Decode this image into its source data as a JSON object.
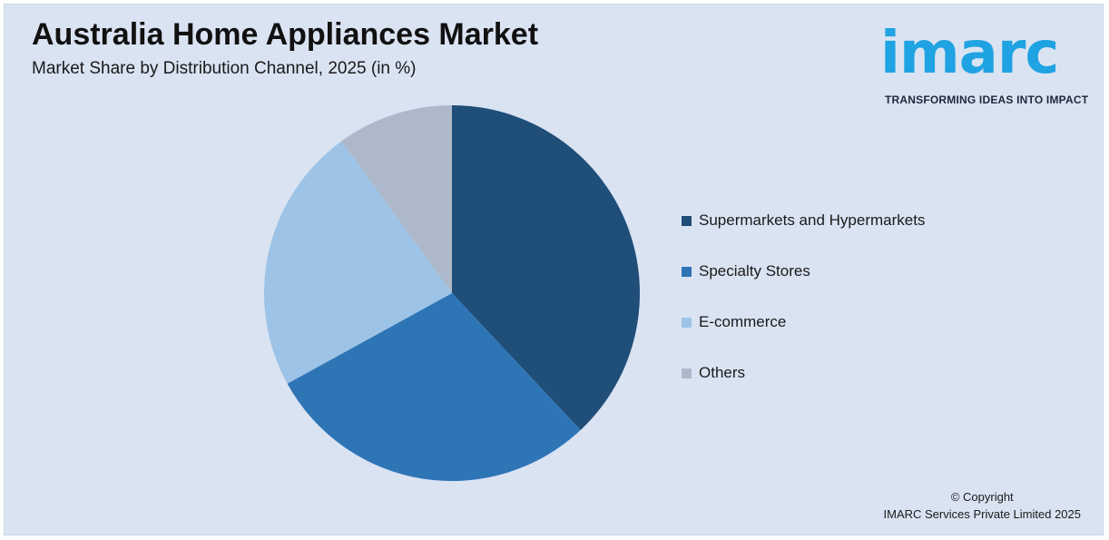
{
  "title": "Australia Home Appliances Market",
  "subtitle": "Market Share by Distribution Channel, 2025 (in %)",
  "logo": {
    "word": "imarc",
    "tagline": "TRANSFORMING IDEAS INTO IMPACT",
    "color": "#1fa3e2"
  },
  "copyright": {
    "line1": "© Copyright",
    "line2": "IMARC Services Private Limited 2025"
  },
  "chart_data": {
    "type": "pie",
    "title": "Australia Home Appliances Market",
    "subtitle": "Market Share by Distribution Channel, 2025 (in %)",
    "categories": [
      "Supermarkets and Hypermarkets",
      "Specialty Stores",
      "E-commerce",
      "Others"
    ],
    "values": [
      38,
      29,
      23,
      10
    ],
    "colors": [
      "#1f4e79",
      "#2e75b6",
      "#9dc3e6",
      "#adb9ca"
    ],
    "start_angle_deg": 0,
    "direction": "clockwise",
    "legend_position": "right"
  }
}
